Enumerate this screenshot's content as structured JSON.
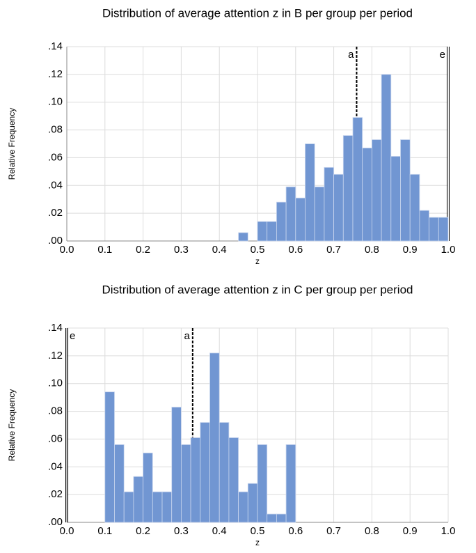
{
  "chart_data": [
    {
      "type": "histogram",
      "title": "Distribution of average attention z in B per group per period",
      "x_label": "z",
      "y_label": "Relative Frequency",
      "color": "#7196d2",
      "grid": true,
      "bins": [
        0.45,
        0.475,
        0.5,
        0.525,
        0.55,
        0.575,
        0.6,
        0.625,
        0.65,
        0.675,
        0.7,
        0.725,
        0.75,
        0.775,
        0.8,
        0.825,
        0.85,
        0.875,
        0.9,
        0.925,
        0.95,
        0.975,
        1.0
      ],
      "values": [
        0.006,
        0,
        0.014,
        0.014,
        0.028,
        0.039,
        0.031,
        0.07,
        0.039,
        0.053,
        0.048,
        0.076,
        0.089,
        0.067,
        0.073,
        0.12,
        0.061,
        0.073,
        0.048,
        0.022,
        0.017,
        0.017
      ],
      "xlim": [
        0,
        1
      ],
      "ylim": [
        0,
        0.14
      ],
      "xticks": [
        {
          "value": 0,
          "label": "0.0"
        },
        0.1,
        0.2,
        0.3,
        0.4,
        0.5,
        0.6,
        0.7,
        0.8,
        0.9,
        {
          "value": 1,
          "label": "1.0"
        }
      ],
      "yticks": [
        {
          "value": 0,
          "label": ".00"
        },
        {
          "value": 0.02,
          "label": ".02"
        },
        {
          "value": 0.04,
          "label": ".04"
        },
        {
          "value": 0.06,
          "label": ".06"
        },
        {
          "value": 0.08,
          "label": ".08"
        },
        {
          "value": 0.1,
          "label": ".10"
        },
        {
          "value": 0.12,
          "label": ".12"
        },
        {
          "value": 0.14,
          "label": ".14"
        }
      ],
      "annotations": [
        {
          "label": "a",
          "x": 0.76,
          "style": "dashed"
        },
        {
          "label": "e",
          "x": 1.0,
          "style": "double"
        }
      ]
    },
    {
      "type": "histogram",
      "title": "Distribution of average attention z in C per group per period",
      "x_label": "z",
      "y_label": "Relative Frequency",
      "color": "#7196d2",
      "grid": true,
      "bins": [
        0.1,
        0.125,
        0.15,
        0.175,
        0.2,
        0.225,
        0.25,
        0.275,
        0.3,
        0.325,
        0.35,
        0.375,
        0.4,
        0.425,
        0.45,
        0.475,
        0.5,
        0.525,
        0.55,
        0.575,
        0.6
      ],
      "values": [
        0.094,
        0.056,
        0.022,
        0.033,
        0.05,
        0.022,
        0.022,
        0.083,
        0.056,
        0.061,
        0.072,
        0.122,
        0.072,
        0.061,
        0.022,
        0.028,
        0.056,
        0.006,
        0.006,
        0.056
      ],
      "xlim": [
        0,
        1
      ],
      "ylim": [
        0,
        0.14
      ],
      "xticks": [
        {
          "value": 0,
          "label": "0.0"
        },
        0.1,
        0.2,
        0.3,
        0.4,
        0.5,
        0.6,
        0.7,
        0.8,
        0.9,
        {
          "value": 1,
          "label": "1.0"
        }
      ],
      "yticks": [
        {
          "value": 0,
          "label": ".00"
        },
        {
          "value": 0.02,
          "label": ".02"
        },
        {
          "value": 0.04,
          "label": ".04"
        },
        {
          "value": 0.06,
          "label": ".06"
        },
        {
          "value": 0.08,
          "label": ".08"
        },
        {
          "value": 0.1,
          "label": ".10"
        },
        {
          "value": 0.12,
          "label": ".12"
        },
        {
          "value": 0.14,
          "label": ".14"
        }
      ],
      "annotations": [
        {
          "label": "a",
          "x": 0.33,
          "style": "dashed"
        },
        {
          "label": "e",
          "x": 0,
          "style": "double"
        }
      ]
    }
  ]
}
